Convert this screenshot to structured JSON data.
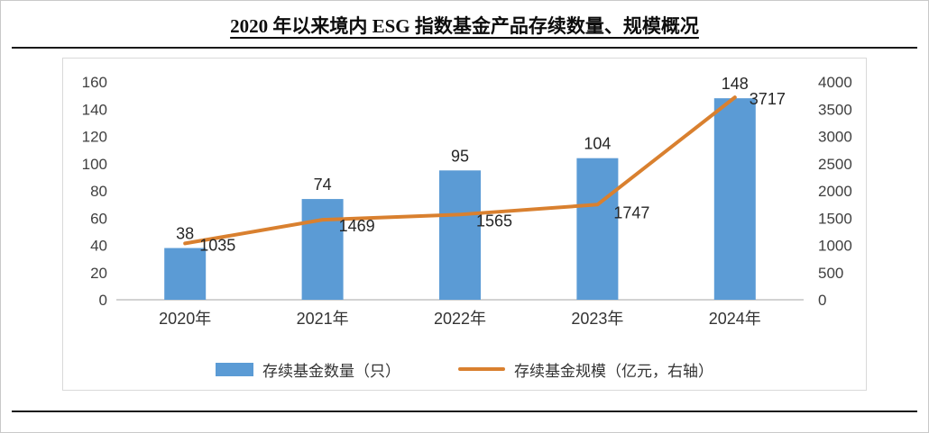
{
  "page": {
    "title": "2020 年以来境内 ESG 指数基金产品存续数量、规模概况"
  },
  "chart_data": {
    "type": "bar",
    "subtype": "bar+line dual-axis combo",
    "title": "2020 年以来境内 ESG 指数基金产品存续数量、规模概况",
    "categories": [
      "2020年",
      "2021年",
      "2022年",
      "2023年",
      "2024年"
    ],
    "series": [
      {
        "name": "存续基金数量（只）",
        "type": "bar",
        "axis": "left",
        "color": "#5b9bd5",
        "values": [
          38,
          74,
          95,
          104,
          148
        ]
      },
      {
        "name": "存续基金规模（亿元，右轴）",
        "type": "line",
        "axis": "right",
        "color": "#d9802f",
        "values": [
          1035,
          1469,
          1565,
          1747,
          3717
        ]
      }
    ],
    "left_axis": {
      "min": 0,
      "max": 160,
      "step": 20
    },
    "right_axis": {
      "min": 0,
      "max": 4000,
      "step": 500
    },
    "grid": false,
    "legend_position": "bottom",
    "xlabel": "",
    "ylabel_left": "",
    "ylabel_right": ""
  }
}
